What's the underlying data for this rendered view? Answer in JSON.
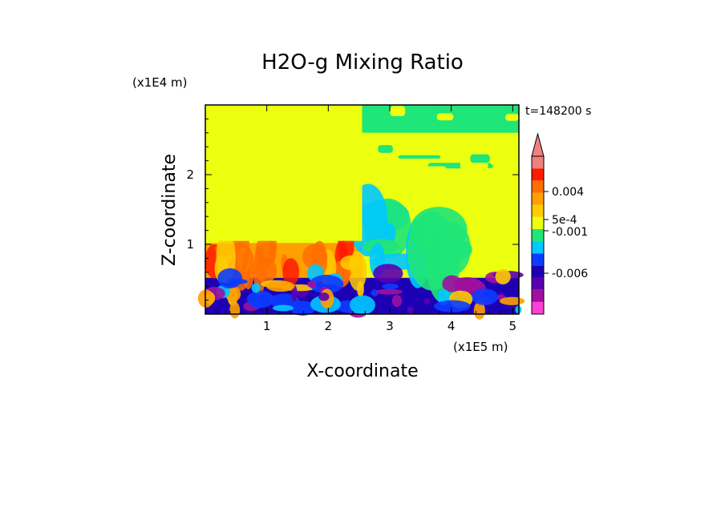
{
  "chart_data": {
    "type": "heatmap",
    "title": "H2O-g Mixing Ratio",
    "xlabel": "X-coordinate",
    "ylabel": "Z-coordinate",
    "x_units": "(x1E5 m)",
    "y_units": "(x1E4 m)",
    "time_label": "t=148200 s",
    "xlim": [
      0,
      5.1
    ],
    "ylim": [
      0,
      3.0
    ],
    "x_ticks": [
      1,
      2,
      3,
      4,
      5
    ],
    "x_tick_labels": [
      "1",
      "2",
      "3",
      "4",
      "5"
    ],
    "y_ticks": [
      1,
      2
    ],
    "y_tick_labels": [
      "1",
      "2"
    ],
    "colorbar": {
      "levels": [
        {
          "upper": 0.009,
          "color": "#ff3fd6"
        },
        {
          "upper": 0.0075,
          "color": "#a00fa0"
        },
        {
          "upper": 0.006,
          "color": "#5a00b4"
        },
        {
          "upper": 0.0045,
          "color": "#1e00b4"
        },
        {
          "upper": 0.003,
          "color": "#0c3cff"
        },
        {
          "upper": 0.0015,
          "color": "#00c8ff"
        },
        {
          "upper": 0.001,
          "color": "#1ee678"
        },
        {
          "upper": 0.0005,
          "color": "#ebff0f"
        },
        {
          "upper": 0.0005,
          "color": "#ffcc00"
        },
        {
          "upper": 0.001,
          "color": "#ffa000"
        },
        {
          "upper": 0.0015,
          "color": "#ff6e00"
        },
        {
          "upper": 0.003,
          "color": "#ff1a00"
        },
        {
          "upper": 0.0045,
          "color": "#f08080"
        }
      ],
      "labels": [
        "0.004",
        "5e-4",
        "-0.001",
        "-0.006"
      ]
    },
    "regions": [
      {
        "x": [
          0,
          2.55
        ],
        "z": [
          1.02,
          3.0
        ],
        "color": "#ebff0f"
      },
      {
        "x": [
          2.55,
          5.1
        ],
        "z": [
          2.6,
          3.0
        ],
        "color": "#1ee678"
      },
      {
        "x": [
          2.55,
          5.1
        ],
        "z": [
          1.6,
          2.6
        ],
        "color": "#ebff0f"
      },
      {
        "x": [
          2.55,
          5.1
        ],
        "z": [
          0.6,
          1.6
        ],
        "color": "#ebff0f"
      },
      {
        "x": [
          0,
          2.55
        ],
        "z": [
          0.52,
          1.02
        ],
        "color": "#ffa000"
      },
      {
        "x": [
          0,
          5.1
        ],
        "z": [
          0,
          0.52
        ],
        "color": "#1e00b4"
      }
    ]
  }
}
